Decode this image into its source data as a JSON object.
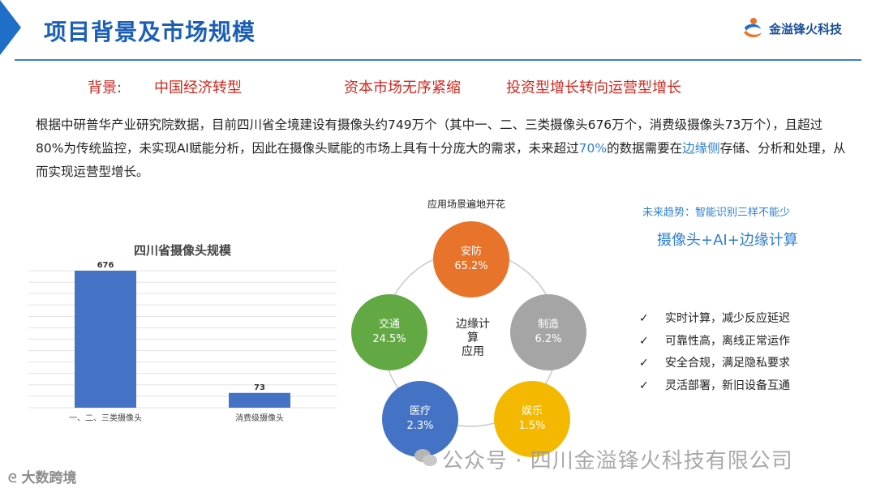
{
  "header": {
    "title": "项目背景及市场规模",
    "logo_text": "金溢锋火科技"
  },
  "background_row": {
    "label": "背景:",
    "item1": "中国经济转型",
    "item2": "资本市场无序紧缩",
    "item3": "投资型增长转向运营型增长"
  },
  "paragraph": {
    "part1": "根据中研普华产业研究院数据，目前四川省全境建设有摄像头约749万个（其中一、二、三类摄像头676万个，消费级摄像头73万个），且超过80%为传统监控，未实现AI赋能分析，因此在摄像头赋能的市场上具有十分庞大的需求，未来超过",
    "highlight1": "70%",
    "part2": "的数据需要在",
    "highlight2": "边缘侧",
    "part3": "存储、分析和处理，从而实现运营型增长。"
  },
  "chart_data": {
    "type": "bar",
    "title": "四川省摄像头规模",
    "categories": [
      "一、二、三类摄像头",
      "消费级摄像头"
    ],
    "values": [
      676,
      73
    ],
    "data_labels": [
      "676",
      "73"
    ],
    "color": "#4472c4",
    "grid": true
  },
  "flower": {
    "title": "应用场景遍地开花",
    "center": [
      "边缘计",
      "算",
      "应用"
    ],
    "petals": [
      {
        "name": "安防",
        "value": "65.2%",
        "color": "#e8732a"
      },
      {
        "name": "制造",
        "value": "6.2%",
        "color": "#a5a5a5"
      },
      {
        "name": "娱乐",
        "value": "1.5%",
        "color": "#f5b800"
      },
      {
        "name": "医疗",
        "value": "2.3%",
        "color": "#4472c4"
      },
      {
        "name": "交通",
        "value": "24.5%",
        "color": "#62a843"
      }
    ]
  },
  "trend": {
    "heading": "未来趋势：智能识别三样不能少",
    "formula": "摄像头+AI+边缘计算",
    "checks": [
      "实时计算，减少反应延迟",
      "可靠性高，离线正常运作",
      "安全合规，满足隐私要求",
      "灵活部署，新旧设备互通"
    ],
    "check_mark": "✓"
  },
  "watermark": {
    "text": "公众号 · 四川金溢锋火科技有限公司",
    "bottom_left": "大数跨境"
  }
}
